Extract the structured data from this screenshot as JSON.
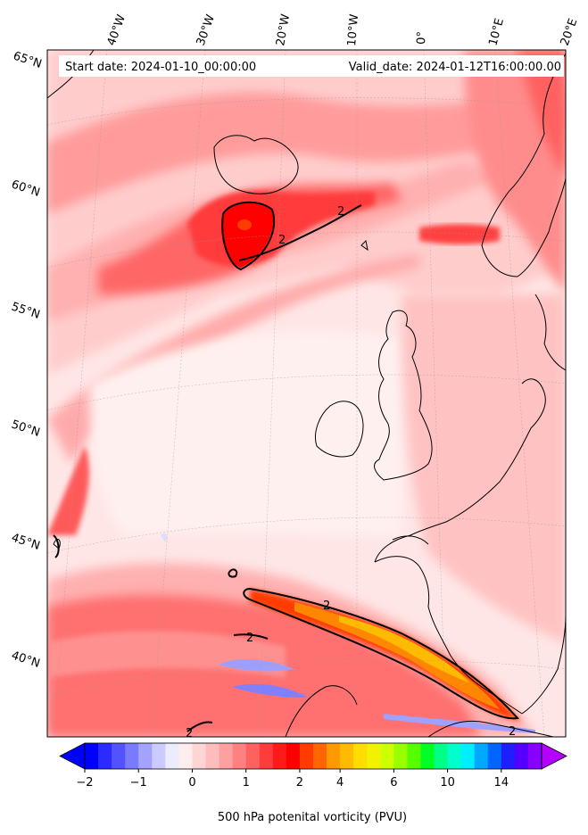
{
  "header": {
    "start_date": "Start date: 2024-01-10_00:00:00",
    "valid_date": "Valid_date: 2024-01-12T16:00:00.00"
  },
  "map": {
    "variable": "500 hPa potenital vorticity (PVU)",
    "contour_value_label": "2",
    "contour_level_pvu": 2,
    "lon_labels": [
      "40°W",
      "30°W",
      "20°W",
      "10°W",
      "0°",
      "10°E",
      "20°E"
    ],
    "lat_labels": [
      "65°N",
      "60°N",
      "55°N",
      "50°N",
      "45°N",
      "40°N"
    ],
    "gridlines": true
  },
  "colorbar": {
    "label": "500 hPa potenital vorticity (PVU)",
    "ticks": [
      "−2",
      "−1",
      "0",
      "1",
      "2",
      "4",
      "6",
      "10",
      "14"
    ],
    "extend": "both",
    "colors": [
      "#0000ff",
      "#2b2bff",
      "#5252ff",
      "#7a7aff",
      "#a3a3ff",
      "#cbcbff",
      "#ececff",
      "#ffecec",
      "#ffd4d4",
      "#ffbcbc",
      "#ffa0a0",
      "#ff8080",
      "#ff6060",
      "#ff3c3c",
      "#ff1a1a",
      "#ff0000",
      "#ff3c00",
      "#ff6600",
      "#ff9900",
      "#ffbb00",
      "#ffdd00",
      "#f2f200",
      "#ccff00",
      "#99ff00",
      "#55ff00",
      "#00ff22",
      "#00ff88",
      "#00ffcc",
      "#00eeff",
      "#00a8ff",
      "#0066ff",
      "#1e1eff",
      "#5500ff",
      "#8800ff"
    ],
    "under_color": "#0000ff",
    "over_color": "#b400ff"
  }
}
